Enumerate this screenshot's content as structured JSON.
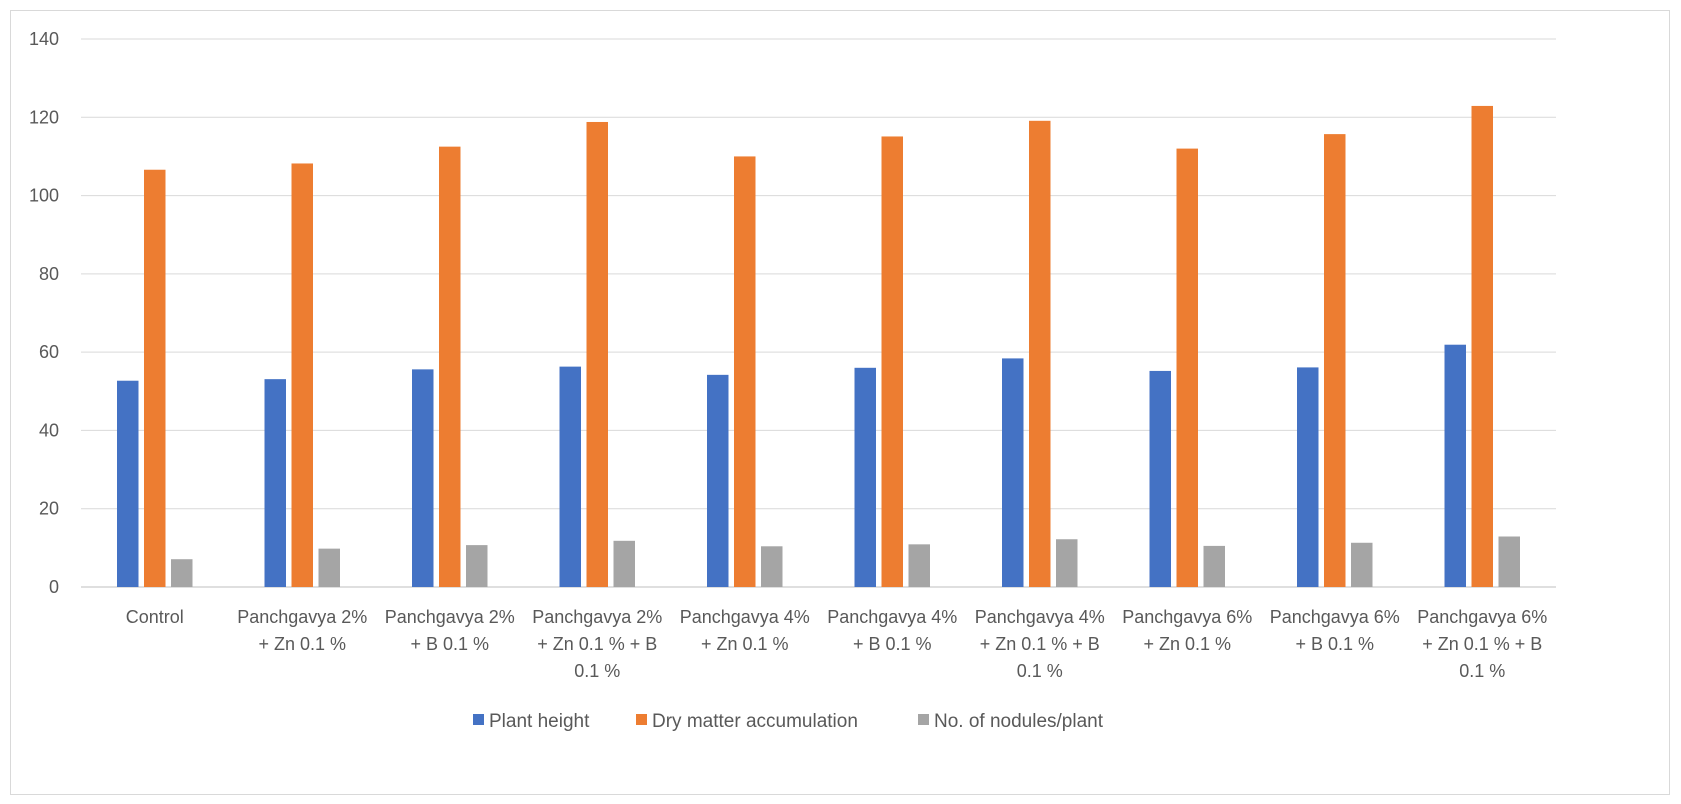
{
  "chart_data": {
    "type": "bar",
    "categories": [
      [
        "Control"
      ],
      [
        "Panchgavya 2%",
        "+ Zn 0.1 %"
      ],
      [
        "Panchgavya 2%",
        "+ B 0.1 %"
      ],
      [
        "Panchgavya 2%",
        "+ Zn 0.1 % + B",
        "0.1 %"
      ],
      [
        "Panchgavya 4%",
        "+ Zn 0.1 %"
      ],
      [
        "Panchgavya 4%",
        "+ B 0.1 %"
      ],
      [
        "Panchgavya 4%",
        "+ Zn 0.1 % + B",
        "0.1 %"
      ],
      [
        "Panchgavya 6%",
        "+ Zn 0.1 %"
      ],
      [
        "Panchgavya 6%",
        "+ B 0.1 %"
      ],
      [
        "Panchgavya 6%",
        "+ Zn 0.1 % + B",
        "0.1 %"
      ]
    ],
    "series": [
      {
        "name": "Plant height",
        "color": "#4472C4",
        "values": [
          52.7,
          53.1,
          55.6,
          56.3,
          54.2,
          56.0,
          58.4,
          55.2,
          56.1,
          61.9
        ]
      },
      {
        "name": "Dry matter accumulation",
        "color": "#ED7D31",
        "values": [
          106.6,
          108.2,
          112.5,
          118.8,
          110.0,
          115.1,
          119.1,
          112.0,
          115.7,
          122.9
        ]
      },
      {
        "name": "No. of nodules/plant",
        "color": "#A5A5A5",
        "values": [
          7.1,
          9.8,
          10.7,
          11.8,
          10.4,
          10.9,
          12.2,
          10.5,
          11.3,
          12.9
        ]
      }
    ],
    "yticks": [
      0,
      20,
      40,
      60,
      80,
      100,
      120,
      140
    ],
    "ylim": [
      0,
      140
    ],
    "grid": true,
    "legend": "bottom",
    "title": "",
    "xlabel": "",
    "ylabel": ""
  }
}
